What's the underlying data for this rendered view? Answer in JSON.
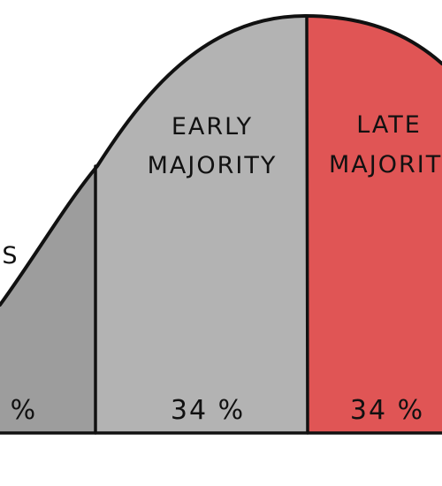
{
  "diagram": {
    "segments": [
      {
        "id": "early-adopters",
        "label_lines": [
          "S"
        ],
        "percent": "‌%",
        "color": "#9d9d9d"
      },
      {
        "id": "early-majority",
        "label_lines": [
          "EARLY",
          "MAJORITY"
        ],
        "percent": "34 %",
        "color": "#b3b3b3"
      },
      {
        "id": "late-majority",
        "label_lines": [
          "LATE",
          "MAJORIT"
        ],
        "percent": "34 %",
        "color": "#e05555"
      }
    ],
    "outline_color": "#111111",
    "background": "#ffffff"
  }
}
